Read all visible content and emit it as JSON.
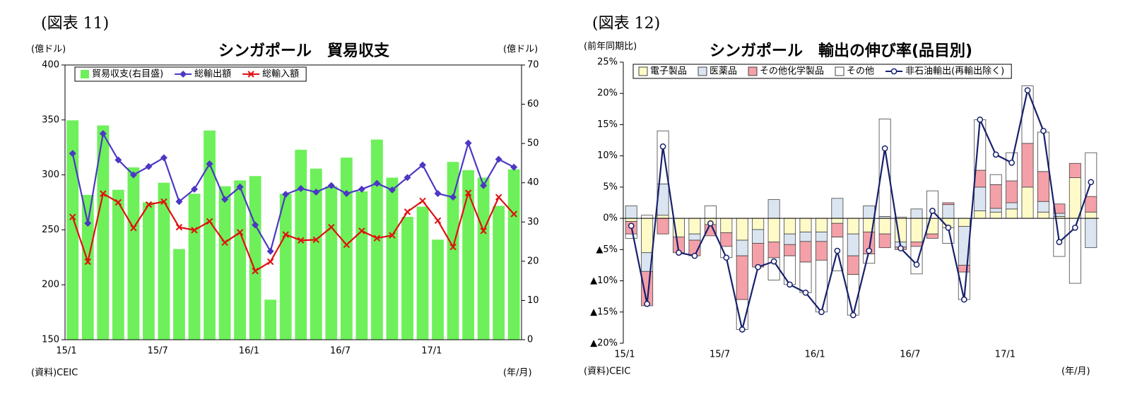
{
  "chart_data": [
    {
      "type": "combo",
      "figure_label": "(図表 11)",
      "title": "シンガポール　貿易収支",
      "y_unit": "(億ドル)",
      "y2_unit": "(億ドル)",
      "source": "(資料)CEIC",
      "x_unit": "(年/月)",
      "categories": [
        "15/1",
        null,
        null,
        null,
        null,
        null,
        "15/7",
        null,
        null,
        null,
        null,
        null,
        "16/1",
        null,
        null,
        null,
        null,
        null,
        "16/7",
        null,
        null,
        null,
        null,
        null,
        "17/1",
        null,
        null,
        null,
        null,
        null
      ],
      "ylim": [
        150,
        400
      ],
      "yticks": [
        150,
        200,
        250,
        300,
        350,
        400
      ],
      "y2lim": [
        0,
        70
      ],
      "y2ticks": [
        0,
        10,
        20,
        30,
        40,
        50,
        60,
        70
      ],
      "series": [
        {
          "name": "貿易収支(右目盛)",
          "type": "bar",
          "axis": "y2",
          "color": "#6ef05a",
          "values": [
            55.9,
            36.9,
            54.6,
            38.2,
            43.9,
            35.0,
            40.0,
            23.1,
            37.2,
            53.3,
            39.1,
            40.6,
            41.7,
            10.2,
            37.2,
            48.4,
            43.6,
            39.1,
            46.4,
            37.8,
            51.0,
            41.3,
            31.3,
            33.9,
            25.5,
            45.3,
            43.2,
            41.3,
            34.1,
            43.4
          ]
        },
        {
          "name": "総輸出額",
          "type": "line",
          "marker": "diamond",
          "color": "#4b38c4",
          "values": [
            319.5,
            256,
            337.5,
            313.6,
            300,
            307.6,
            315.6,
            275.7,
            287,
            310,
            277.7,
            289,
            254.4,
            230.5,
            282.3,
            287.6,
            284.3,
            290.3,
            283,
            287,
            292.3,
            286.3,
            297.6,
            309,
            283,
            279.7,
            328.9,
            290.3,
            314.2,
            307
          ]
        },
        {
          "name": "総輸入額",
          "type": "line",
          "marker": "x",
          "color": "#e01010",
          "values": [
            261.7,
            221,
            283,
            275,
            251.7,
            273,
            275.7,
            252.4,
            249.7,
            257.7,
            238.4,
            247.7,
            212.5,
            221,
            245.7,
            240.4,
            241,
            252.4,
            236.4,
            249,
            242.4,
            245,
            266.4,
            276.3,
            258.4,
            234.4,
            283.6,
            249,
            279.7,
            264.4
          ]
        }
      ]
    },
    {
      "type": "combo",
      "stacked": true,
      "figure_label": "(図表 12)",
      "title": "シンガポール　輸出の伸び率(品目別)",
      "y_unit": "(前年同期比)",
      "source": "(資料)CEIC",
      "x_unit": "(年/月)",
      "categories": [
        "15/1",
        null,
        null,
        null,
        null,
        null,
        "15/7",
        null,
        null,
        null,
        null,
        null,
        "16/1",
        null,
        null,
        null,
        null,
        null,
        "16/7",
        null,
        null,
        null,
        null,
        null,
        "17/1",
        null,
        null,
        null,
        null,
        null
      ],
      "ylim": [
        -20,
        25
      ],
      "yticks": [
        {
          "value": -20,
          "label": "▲20%"
        },
        {
          "value": -15,
          "label": "▲15%"
        },
        {
          "value": -10,
          "label": "▲10%"
        },
        {
          "value": -5,
          "label": "▲5%"
        },
        {
          "value": 0,
          "label": "0%"
        },
        {
          "value": 5,
          "label": "5%"
        },
        {
          "value": 10,
          "label": "10%"
        },
        {
          "value": 15,
          "label": "15%"
        },
        {
          "value": 20,
          "label": "20%"
        },
        {
          "value": 25,
          "label": "25%"
        }
      ],
      "series": [
        {
          "name": "電子製品",
          "type": "bar",
          "color": "#fffbc8",
          "values": [
            -0.5,
            -5.5,
            0.5,
            -3.0,
            -2.5,
            -1.0,
            -2.3,
            -3.5,
            -1.8,
            -3.8,
            -2.5,
            -2.2,
            -2.2,
            -0.8,
            -2.5,
            -2.2,
            -2.5,
            -3.8,
            -3.8,
            -2.5,
            -1.5,
            -1.3,
            1.2,
            1.0,
            1.5,
            5.0,
            1.0,
            0.3,
            6.5,
            1.0
          ]
        },
        {
          "name": "医薬品",
          "type": "bar",
          "color": "#dbe5f1",
          "values": [
            2.0,
            -3.0,
            5.0,
            0,
            -1.0,
            0,
            0,
            -2.5,
            -2.2,
            3.0,
            -1.7,
            -1.5,
            -1.5,
            3.2,
            -3.5,
            2.0,
            0.3,
            -0.8,
            1.5,
            0,
            2.2,
            -6.2,
            3.8,
            0.6,
            1.0,
            0,
            1.7,
            0.5,
            0,
            -4.7
          ]
        },
        {
          "name": "その他化学製品",
          "type": "bar",
          "color": "#f4a0a8",
          "values": [
            -2.0,
            -5.5,
            -2.5,
            -2.5,
            -2.5,
            -1.8,
            -2.2,
            -7.0,
            -3.8,
            -2.5,
            -1.8,
            -3.3,
            -3.0,
            -2.2,
            -3.0,
            -3.5,
            -2.2,
            -0.4,
            -0.7,
            -0.7,
            0.3,
            -1.1,
            2.7,
            3.8,
            3.5,
            7.0,
            4.8,
            1.5,
            2.3,
            2.5
          ]
        },
        {
          "name": "その他",
          "type": "bar",
          "color": "#ffffff",
          "values": [
            -0.7,
            0.5,
            8.5,
            0,
            0,
            2.0,
            -1.8,
            -4.8,
            0,
            -3.6,
            -4.6,
            -4.9,
            -8.3,
            -5.4,
            -6.5,
            -1.5,
            15.6,
            0.2,
            -4.4,
            4.4,
            -2.5,
            -4.4,
            8.1,
            1.6,
            4.5,
            9.2,
            6.3,
            -6.1,
            -10.4,
            7.0
          ]
        },
        {
          "name": "非石油輸出(再輸出除く)",
          "type": "line",
          "marker": "circle",
          "color": "#17206b",
          "values": [
            -1.2,
            -13.7,
            11.5,
            -5.5,
            -6.0,
            -0.8,
            -6.3,
            -17.8,
            -7.8,
            -6.9,
            -10.6,
            -11.9,
            -15.0,
            -5.2,
            -15.5,
            -5.2,
            11.2,
            -4.8,
            -7.4,
            1.2,
            -1.5,
            -13.0,
            15.8,
            10.2,
            8.9,
            20.5,
            14.0,
            -3.8,
            -1.5,
            5.8
          ]
        }
      ]
    }
  ]
}
